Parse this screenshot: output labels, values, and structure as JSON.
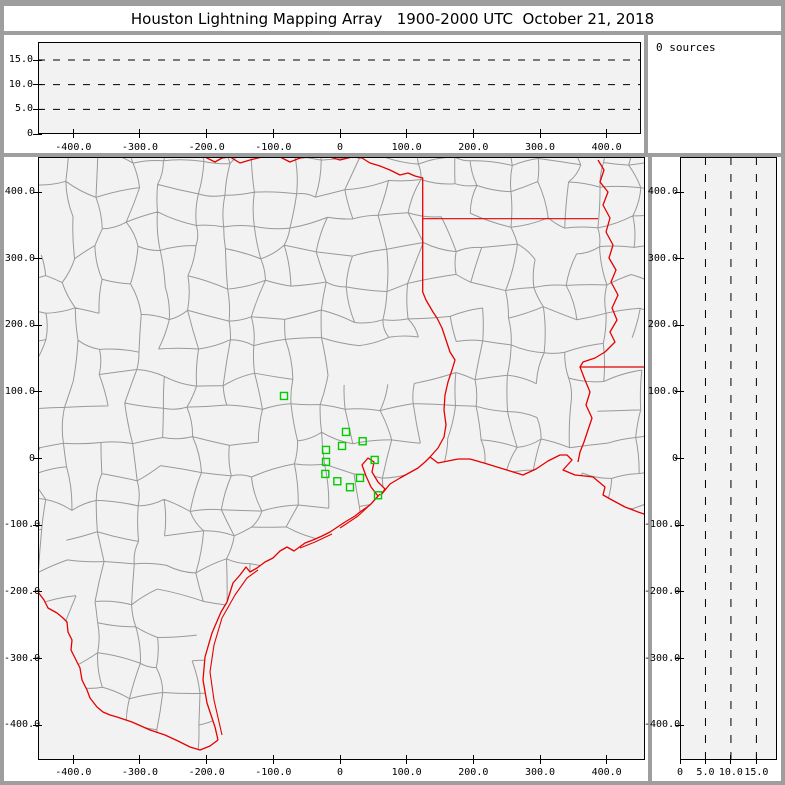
{
  "window": {
    "title": "Houston Lightning Mapping Array   1900-2000 UTC  October 21, 2018"
  },
  "sources_panel": {
    "label": "0 sources"
  },
  "sources_count": 0,
  "colors": {
    "frame": "#9e9e9e",
    "panel_bg": "#ffffff",
    "plot_bg": "#f2f2f2",
    "axis": "#000000",
    "county_line": "#999999",
    "state_line": "#e60000",
    "station_marker": "#00cc00"
  },
  "axes": {
    "ew_ticks": [
      {
        "km": -400,
        "label": "-400.0"
      },
      {
        "km": -300,
        "label": "-300.0"
      },
      {
        "km": -200,
        "label": "-200.0"
      },
      {
        "km": -100,
        "label": "-100.0"
      },
      {
        "km": 0,
        "label": "0"
      },
      {
        "km": 100,
        "label": "100.0"
      },
      {
        "km": 200,
        "label": "200.0"
      },
      {
        "km": 300,
        "label": "300.0"
      },
      {
        "km": 400,
        "label": "400.0"
      }
    ],
    "ns_ticks": [
      {
        "km": 400,
        "label": "400.0"
      },
      {
        "km": 300,
        "label": "300.0"
      },
      {
        "km": 200,
        "label": "200.0"
      },
      {
        "km": 100,
        "label": "100.0"
      },
      {
        "km": 0,
        "label": "0"
      },
      {
        "km": -100,
        "label": "-100.0"
      },
      {
        "km": -200,
        "label": "-200.0"
      },
      {
        "km": -300,
        "label": "-300.0"
      },
      {
        "km": -400,
        "label": "-400.0"
      }
    ],
    "alt_ticks": [
      {
        "km": 0,
        "label": "0"
      },
      {
        "km": 5,
        "label": "5.0"
      },
      {
        "km": 10,
        "label": "10.0"
      },
      {
        "km": 15,
        "label": "15.0"
      }
    ],
    "alt_dashed_gridlines_km": [
      5,
      10,
      15
    ]
  },
  "stations_km": [
    [
      -84,
      94
    ],
    [
      9,
      40
    ],
    [
      34,
      26
    ],
    [
      3,
      19
    ],
    [
      -21,
      13
    ],
    [
      -21,
      -5
    ],
    [
      52,
      -2
    ],
    [
      -22,
      -23
    ],
    [
      30,
      -29
    ],
    [
      -4,
      -34
    ],
    [
      15,
      -43
    ],
    [
      57,
      -55
    ]
  ],
  "chart_data": [
    {
      "type": "scatter",
      "panel": "altitude-vs-east-west",
      "x_ticks": [
        "-400.0",
        "-300.0",
        "-200.0",
        "-100.0",
        "0",
        "100.0",
        "200.0",
        "300.0",
        "400.0"
      ],
      "y_ticks": [
        "0",
        "5.0",
        "10.0",
        "15.0"
      ],
      "x_range_km": [
        -453,
        457
      ],
      "y_range_km": [
        0,
        18.6
      ],
      "dashed_gridlines_km": [
        5,
        10,
        15
      ],
      "series": [
        {
          "name": "lightning-sources",
          "points": []
        }
      ]
    },
    {
      "type": "scatter",
      "panel": "plan-view-map",
      "x_ticks": [
        "-400.0",
        "-300.0",
        "-200.0",
        "-100.0",
        "0",
        "100.0",
        "200.0",
        "300.0",
        "400.0"
      ],
      "y_ticks": [
        "400.0",
        "300.0",
        "200.0",
        "100.0",
        "0",
        "-100.0",
        "-200.0",
        "-300.0",
        "-400.0"
      ],
      "x_range_km": [
        -453,
        457
      ],
      "y_range_km": [
        -453,
        452
      ],
      "series": [
        {
          "name": "lightning-sources",
          "points": []
        }
      ],
      "station_markers_km": [
        [
          -84,
          94
        ],
        [
          9,
          40
        ],
        [
          34,
          26
        ],
        [
          3,
          19
        ],
        [
          -21,
          13
        ],
        [
          -21,
          -5
        ],
        [
          52,
          -2
        ],
        [
          -22,
          -23
        ],
        [
          30,
          -29
        ],
        [
          -4,
          -34
        ],
        [
          15,
          -43
        ],
        [
          57,
          -55
        ]
      ],
      "basemap": "Texas and Louisiana county outlines (gray) with state borders, rivers and Gulf coastline (red)"
    },
    {
      "type": "scatter",
      "panel": "altitude-vs-north-south",
      "x_ticks": [
        "0",
        "5.0",
        "10.0",
        "15.0"
      ],
      "y_ticks": [
        "400.0",
        "300.0",
        "200.0",
        "100.0",
        "0",
        "-100.0",
        "-200.0",
        "-300.0",
        "-400.0"
      ],
      "x_range_km": [
        0,
        18.6
      ],
      "y_range_km": [
        -453,
        452
      ],
      "dashed_gridlines_km": [
        5,
        10,
        15
      ],
      "series": [
        {
          "name": "lightning-sources",
          "points": []
        }
      ]
    }
  ],
  "map_features": {
    "units": "screenshot_px",
    "coastline": [
      [
        218,
        740
      ],
      [
        215,
        727
      ],
      [
        207,
        703
      ],
      [
        203,
        680
      ],
      [
        205,
        657
      ],
      [
        212,
        633
      ],
      [
        221,
        612
      ],
      [
        227,
        602
      ],
      [
        233,
        583
      ],
      [
        240,
        575
      ],
      [
        246,
        567
      ],
      [
        250,
        572
      ],
      [
        257,
        568
      ],
      [
        265,
        562
      ],
      [
        273,
        558
      ],
      [
        280,
        551
      ],
      [
        287,
        547
      ],
      [
        294,
        551
      ],
      [
        305,
        543
      ],
      [
        313,
        540
      ],
      [
        322,
        536
      ],
      [
        330,
        532
      ],
      [
        345,
        522
      ],
      [
        355,
        516
      ],
      [
        360,
        512
      ],
      [
        370,
        505
      ],
      [
        378,
        496
      ],
      [
        371,
        487
      ],
      [
        366,
        476
      ],
      [
        362,
        465
      ],
      [
        368,
        458
      ],
      [
        374,
        462
      ],
      [
        372,
        472
      ],
      [
        378,
        482
      ],
      [
        385,
        489
      ],
      [
        381,
        495
      ],
      [
        390,
        484
      ],
      [
        400,
        478
      ],
      [
        409,
        473
      ],
      [
        418,
        468
      ],
      [
        425,
        462
      ],
      [
        430,
        457
      ],
      [
        438,
        463
      ],
      [
        448,
        461
      ],
      [
        458,
        459
      ],
      [
        470,
        459
      ],
      [
        484,
        463
      ],
      [
        497,
        467
      ],
      [
        510,
        471
      ],
      [
        523,
        475
      ],
      [
        536,
        469
      ],
      [
        548,
        461
      ],
      [
        560,
        455
      ],
      [
        567,
        455
      ],
      [
        572,
        460
      ],
      [
        563,
        470
      ],
      [
        575,
        475
      ],
      [
        585,
        476
      ],
      [
        593,
        477
      ],
      [
        605,
        487
      ],
      [
        603,
        495
      ],
      [
        612,
        500
      ],
      [
        625,
        507
      ],
      [
        638,
        512
      ],
      [
        650,
        516
      ]
    ],
    "rio_grande": [
      [
        38,
        592
      ],
      [
        44,
        600
      ],
      [
        48,
        608
      ],
      [
        57,
        613
      ],
      [
        63,
        618
      ],
      [
        67,
        622
      ],
      [
        68,
        632
      ],
      [
        72,
        640
      ],
      [
        71,
        650
      ],
      [
        75,
        658
      ],
      [
        80,
        668
      ],
      [
        82,
        680
      ],
      [
        87,
        690
      ],
      [
        90,
        698
      ],
      [
        97,
        707
      ],
      [
        103,
        712
      ],
      [
        110,
        715
      ],
      [
        117,
        717
      ],
      [
        132,
        722
      ],
      [
        150,
        730
      ],
      [
        165,
        735
      ],
      [
        178,
        741
      ],
      [
        190,
        747
      ],
      [
        200,
        750
      ],
      [
        210,
        746
      ],
      [
        218,
        740
      ]
    ],
    "red_river_sabine": [
      [
        205,
        157
      ],
      [
        215,
        162
      ],
      [
        222,
        158
      ],
      [
        230,
        157
      ],
      [
        240,
        163
      ],
      [
        250,
        160
      ],
      [
        262,
        157
      ],
      [
        280,
        157
      ],
      [
        290,
        162
      ],
      [
        300,
        158
      ],
      [
        310,
        157
      ],
      [
        330,
        157
      ],
      [
        340,
        160
      ],
      [
        352,
        157
      ],
      [
        362,
        158
      ],
      [
        370,
        163
      ],
      [
        380,
        166
      ],
      [
        390,
        170
      ],
      [
        400,
        175
      ],
      [
        408,
        173
      ],
      [
        415,
        176
      ],
      [
        422.7,
        178
      ],
      [
        422.7,
        292
      ],
      [
        426,
        300
      ],
      [
        433,
        312
      ],
      [
        437,
        318
      ],
      [
        442,
        328
      ],
      [
        446,
        340
      ],
      [
        450,
        352
      ],
      [
        455,
        360
      ],
      [
        452,
        370
      ],
      [
        448,
        382
      ],
      [
        445,
        395
      ],
      [
        444,
        410
      ],
      [
        446,
        425
      ],
      [
        444,
        437
      ],
      [
        438,
        448
      ],
      [
        430,
        457
      ]
    ],
    "ar_la_border": [
      [
        422.7,
        218.7
      ],
      [
        598,
        218.7
      ]
    ],
    "la_ms_border": [
      [
        580,
        367
      ],
      [
        650,
        367
      ]
    ],
    "mississippi_river": [
      [
        598,
        160
      ],
      [
        604,
        170
      ],
      [
        600,
        182
      ],
      [
        608,
        192
      ],
      [
        603,
        205
      ],
      [
        610,
        218
      ],
      [
        606,
        232
      ],
      [
        613,
        245
      ],
      [
        609,
        258
      ],
      [
        616,
        270
      ],
      [
        611,
        282
      ],
      [
        618,
        295
      ],
      [
        612,
        308
      ],
      [
        617,
        320
      ],
      [
        610,
        332
      ],
      [
        615,
        342
      ],
      [
        605,
        352
      ],
      [
        595,
        358
      ],
      [
        583,
        362
      ],
      [
        580,
        367
      ],
      [
        585,
        380
      ],
      [
        590,
        392
      ],
      [
        586,
        405
      ],
      [
        592,
        418
      ],
      [
        588,
        430
      ],
      [
        584,
        442
      ],
      [
        580,
        452
      ],
      [
        578,
        462
      ]
    ],
    "barrier_islands": [
      [
        [
          222,
          735
        ],
        [
          214,
          700
        ],
        [
          210,
          672
        ],
        [
          214,
          645
        ],
        [
          222,
          618
        ],
        [
          235,
          595
        ],
        [
          247,
          578
        ],
        [
          258,
          570
        ]
      ],
      [
        [
          300,
          548
        ],
        [
          315,
          542
        ],
        [
          332,
          534
        ]
      ],
      [
        [
          340,
          528
        ],
        [
          358,
          516
        ],
        [
          372,
          503
        ],
        [
          380,
          494
        ]
      ]
    ]
  },
  "county_mesh": {
    "seed": 42,
    "cols": 22,
    "rows": 22,
    "cell": 31.5,
    "jitter": 9,
    "skip": 0.17,
    "wiggle": 3.5
  }
}
